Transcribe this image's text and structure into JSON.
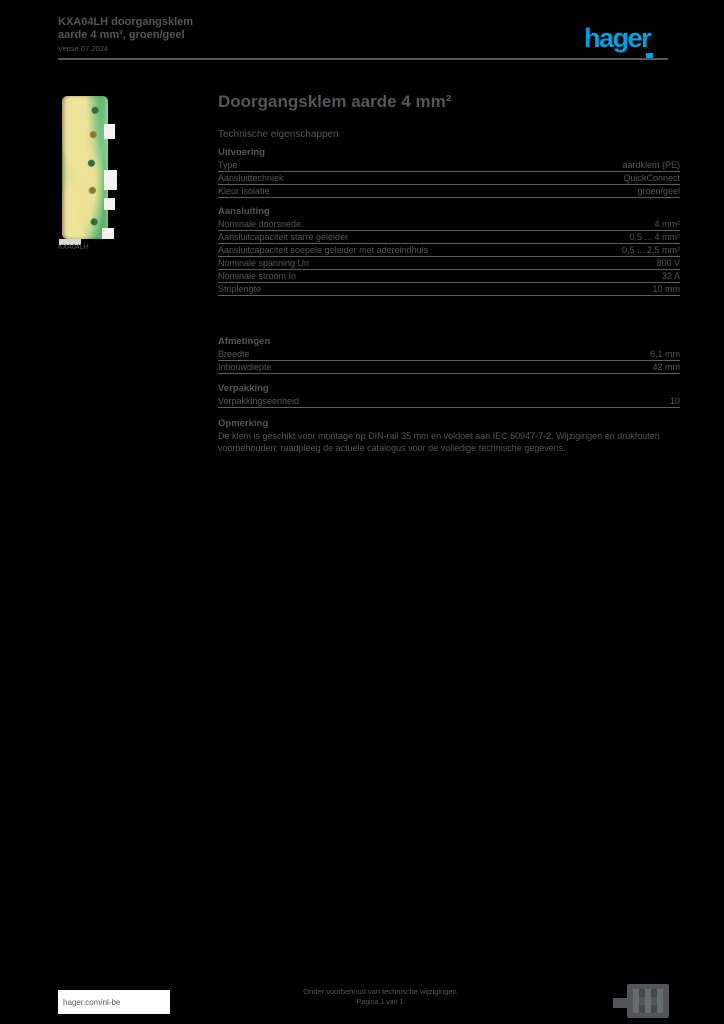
{
  "header": {
    "product_title": "KXA04LH doorgangsklem aarde 4 mm², groen/geel",
    "meta": "Versie 07.2024"
  },
  "logo": {
    "text": "hager",
    "color": "#009EE2"
  },
  "figure": {
    "caption": "KXA04LH",
    "description": "groen/geel aardklem, vooraanzicht"
  },
  "main": {
    "title": "Doorgangsklem aarde 4 mm²",
    "subtitle": "Technische eigenschappen"
  },
  "specs": {
    "groups": [
      {
        "heading": "Uitvoering",
        "rows": [
          {
            "label": "Type",
            "value": "aardklem (PE)"
          },
          {
            "label": "Aansluittechniek",
            "value": "QuickConnect"
          },
          {
            "label": "Kleur isolatie",
            "value": "groen/geel"
          }
        ]
      },
      {
        "heading": "Aansluiting",
        "rows": [
          {
            "label": "Nominale doorsnede",
            "value": "4 mm²"
          },
          {
            "label": "Aansluitcapaciteit starre geleider",
            "value": "0,5 ... 4 mm²"
          },
          {
            "label": "Aansluitcapaciteit soepele geleider met adereindhuls",
            "value": "0,5 ... 2,5 mm²"
          },
          {
            "label": "Nominale spanning Un",
            "value": "800 V"
          },
          {
            "label": "Nominale stroom In",
            "value": "32 A"
          },
          {
            "label": "Striplengte",
            "value": "10 mm"
          }
        ]
      },
      {
        "heading": "Afmetingen",
        "rows": [
          {
            "label": "Breedte",
            "value": "6,1 mm"
          },
          {
            "label": "Inbouwdiepte",
            "value": "42 mm"
          }
        ]
      },
      {
        "heading": "Verpakking",
        "rows": [
          {
            "label": "Verpakkingseenheid",
            "value": "10"
          }
        ]
      },
      {
        "heading": "Opmerking",
        "paragraph": "De klem is geschikt voor montage op DIN-rail 35 mm en voldoet aan IEC 60947-7-2. Wijzigingen en drukfouten voorbehouden; raadpleeg de actuele catalogus voor de volledige technische gegevens."
      }
    ]
  },
  "footer": {
    "link": "hager.com/nl-be",
    "disclaimer": "Onder voorbehoud van technische wijzigingen",
    "page_info": "Pagina 1 van 1"
  },
  "colors": {
    "background": "#000000",
    "text": "#55565A",
    "rule": "#55565A",
    "accent_blue": "#009EE2",
    "footer_box": "#FFFFFF",
    "terminal_green": "#5BB273",
    "terminal_yellow": "#EFE49B"
  }
}
